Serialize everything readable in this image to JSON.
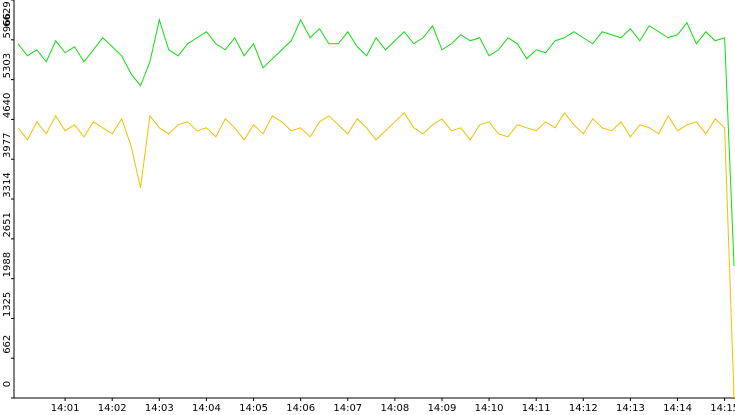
{
  "chart_data": {
    "type": "line",
    "x": [
      0,
      0.2,
      0.4,
      0.6,
      0.8,
      1,
      1.2,
      1.4,
      1.6,
      1.8,
      2,
      2.2,
      2.4,
      2.6,
      2.8,
      3,
      3.2,
      3.4,
      3.6,
      3.8,
      4,
      4.2,
      4.4,
      4.6,
      4.8,
      5,
      5.2,
      5.4,
      5.6,
      5.8,
      6,
      6.2,
      6.4,
      6.6,
      6.8,
      7,
      7.2,
      7.4,
      7.6,
      7.8,
      8,
      8.2,
      8.4,
      8.6,
      8.8,
      9,
      9.2,
      9.4,
      9.6,
      9.8,
      10,
      10.2,
      10.4,
      10.6,
      10.8,
      11,
      11.2,
      11.4,
      11.6,
      11.8,
      12,
      12.2,
      12.4,
      12.6,
      12.8,
      13,
      13.2,
      13.4,
      13.6,
      13.8,
      14,
      14.2,
      14.4,
      14.6,
      14.8,
      15,
      15.2
    ],
    "series": [
      {
        "color": "#11dd11",
        "values": [
          5900,
          5700,
          5800,
          5600,
          5950,
          5750,
          5850,
          5600,
          5800,
          6000,
          5850,
          5700,
          5400,
          5200,
          5600,
          6300,
          5800,
          5700,
          5900,
          6000,
          6100,
          5900,
          5800,
          6000,
          5700,
          5900,
          5500,
          5650,
          5800,
          5950,
          6300,
          6000,
          6150,
          5900,
          5900,
          6100,
          5850,
          5700,
          6000,
          5800,
          5950,
          6100,
          5900,
          6000,
          6200,
          5800,
          5900,
          6050,
          5950,
          6000,
          5700,
          5800,
          6000,
          5900,
          5650,
          5800,
          5750,
          5950,
          6000,
          6100,
          6000,
          5900,
          6100,
          6050,
          6000,
          6150,
          5950,
          6200,
          6100,
          6000,
          6050,
          6250,
          5900,
          6100,
          5950,
          6000,
          2200
        ]
      },
      {
        "color": "#f2c000",
        "values": [
          4500,
          4300,
          4600,
          4400,
          4700,
          4450,
          4550,
          4350,
          4600,
          4500,
          4400,
          4650,
          4200,
          3500,
          4700,
          4500,
          4400,
          4550,
          4600,
          4450,
          4500,
          4350,
          4650,
          4500,
          4300,
          4550,
          4400,
          4700,
          4600,
          4450,
          4500,
          4350,
          4600,
          4700,
          4550,
          4400,
          4650,
          4500,
          4300,
          4450,
          4600,
          4750,
          4500,
          4400,
          4550,
          4650,
          4450,
          4500,
          4300,
          4550,
          4600,
          4400,
          4350,
          4550,
          4500,
          4450,
          4600,
          4500,
          4750,
          4550,
          4400,
          4650,
          4500,
          4450,
          4600,
          4350,
          4550,
          4500,
          4400,
          4700,
          4450,
          4550,
          4600,
          4400,
          4650,
          4500,
          0
        ]
      }
    ],
    "xlim": [
      -0.085,
      15.22
    ],
    "xticks": [
      {
        "value": 1,
        "label": "14:01"
      },
      {
        "value": 2,
        "label": "14:02"
      },
      {
        "value": 3,
        "label": "14:03"
      },
      {
        "value": 4,
        "label": "14:04"
      },
      {
        "value": 5,
        "label": "14:05"
      },
      {
        "value": 6,
        "label": "14:06"
      },
      {
        "value": 7,
        "label": "14:07"
      },
      {
        "value": 8,
        "label": "14:08"
      },
      {
        "value": 9,
        "label": "14:09"
      },
      {
        "value": 10,
        "label": "14:10"
      },
      {
        "value": 11,
        "label": "14:11"
      },
      {
        "value": 12,
        "label": "14:12"
      },
      {
        "value": 13,
        "label": "14:13"
      },
      {
        "value": 14,
        "label": "14:14"
      },
      {
        "value": 15,
        "label": "14:15"
      }
    ],
    "ylim": [
      0,
      6629
    ],
    "yticks": [
      0,
      662,
      1325,
      1988,
      2651,
      3314,
      3977,
      4640,
      5303,
      5966,
      6629
    ]
  }
}
